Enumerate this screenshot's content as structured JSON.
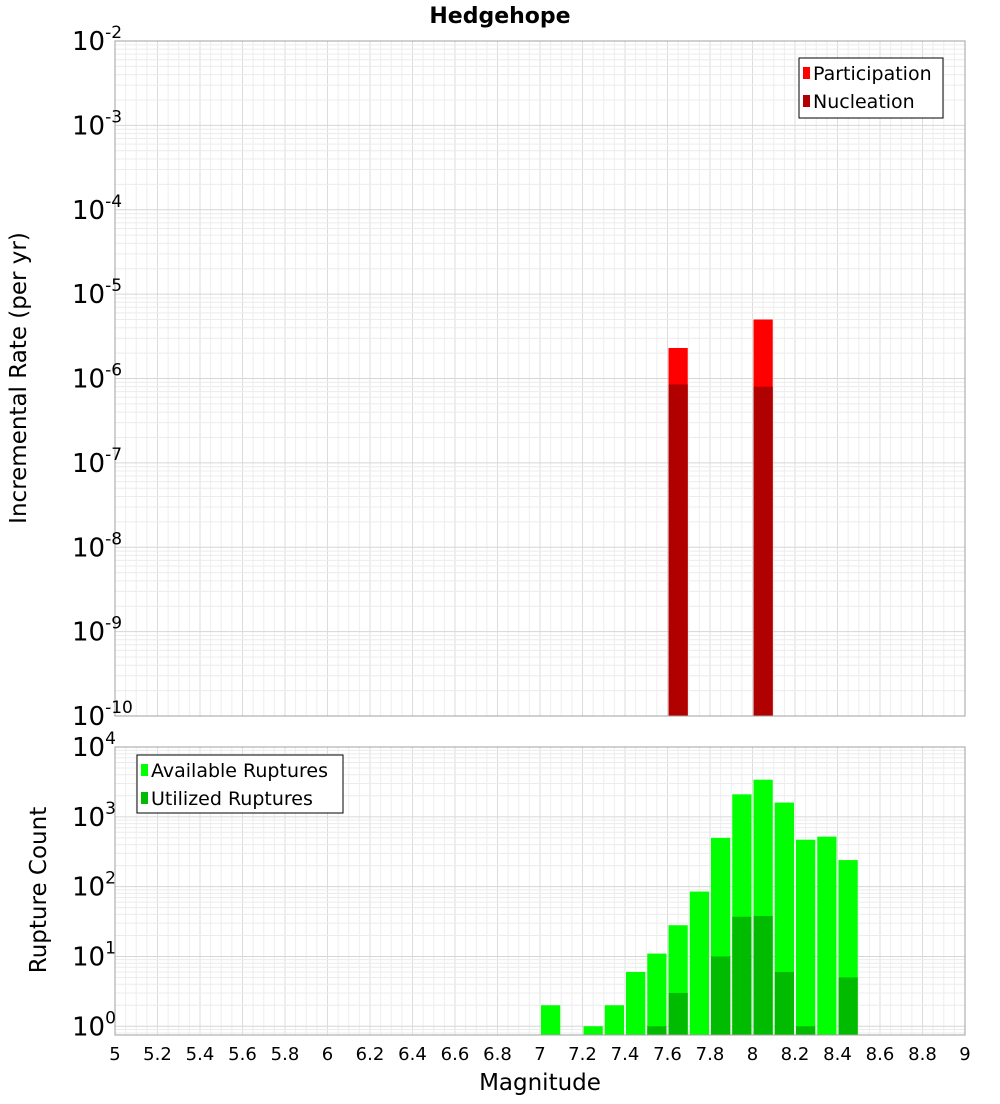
{
  "title": "Hedgehope",
  "xlabel": "Magnitude",
  "chart_data": [
    {
      "type": "bar",
      "ylabel": "Incremental Rate (per yr)",
      "yscale": "log",
      "ylim": [
        1e-10,
        0.01
      ],
      "xlim": [
        5,
        9
      ],
      "bin_width": 0.1,
      "grid": true,
      "legend_position": "top-right",
      "y_ticks": [
        {
          "base": "10",
          "exp": "-2"
        },
        {
          "base": "10",
          "exp": "-3"
        },
        {
          "base": "10",
          "exp": "-4"
        },
        {
          "base": "10",
          "exp": "-5"
        },
        {
          "base": "10",
          "exp": "-6"
        },
        {
          "base": "10",
          "exp": "-7"
        },
        {
          "base": "10",
          "exp": "-8"
        },
        {
          "base": "10",
          "exp": "-9"
        },
        {
          "base": "10",
          "exp": "-10"
        }
      ],
      "series": [
        {
          "name": "Participation",
          "color": "#ff0000",
          "x": [
            7.65,
            8.05
          ],
          "values": [
            2.3e-06,
            5e-06
          ]
        },
        {
          "name": "Nucleation",
          "color": "#b00000",
          "x": [
            7.65,
            8.05
          ],
          "values": [
            8.5e-07,
            8e-07
          ]
        }
      ]
    },
    {
      "type": "bar",
      "ylabel": "Rupture Count",
      "yscale": "log",
      "ylim": [
        0.75,
        10000
      ],
      "xlim": [
        5,
        9
      ],
      "bin_width": 0.1,
      "grid": true,
      "legend_position": "top-left",
      "y_ticks": [
        {
          "base": "10",
          "exp": "4"
        },
        {
          "base": "10",
          "exp": "3"
        },
        {
          "base": "10",
          "exp": "2"
        },
        {
          "base": "10",
          "exp": "1"
        },
        {
          "base": "10",
          "exp": "0"
        }
      ],
      "series": [
        {
          "name": "Available Ruptures",
          "color": "#00ff00",
          "x": [
            7.05,
            7.25,
            7.35,
            7.45,
            7.55,
            7.65,
            7.75,
            7.85,
            7.95,
            8.05,
            8.15,
            8.25,
            8.35,
            8.45
          ],
          "values": [
            2,
            1,
            2,
            6,
            11,
            28,
            85,
            500,
            2100,
            3400,
            1600,
            470,
            520,
            240
          ]
        },
        {
          "name": "Utilized Ruptures",
          "color": "#00bb00",
          "x": [
            7.55,
            7.65,
            7.85,
            7.95,
            8.05,
            8.15,
            8.25,
            8.45
          ],
          "values": [
            1,
            3,
            10,
            37,
            38,
            6,
            1,
            5
          ]
        }
      ]
    }
  ],
  "x_ticks": [
    "5",
    "5.2",
    "5.4",
    "5.6",
    "5.8",
    "6",
    "6.2",
    "6.4",
    "6.6",
    "6.8",
    "7",
    "7.2",
    "7.4",
    "7.6",
    "7.8",
    "8",
    "8.2",
    "8.4",
    "8.6",
    "8.8",
    "9"
  ]
}
